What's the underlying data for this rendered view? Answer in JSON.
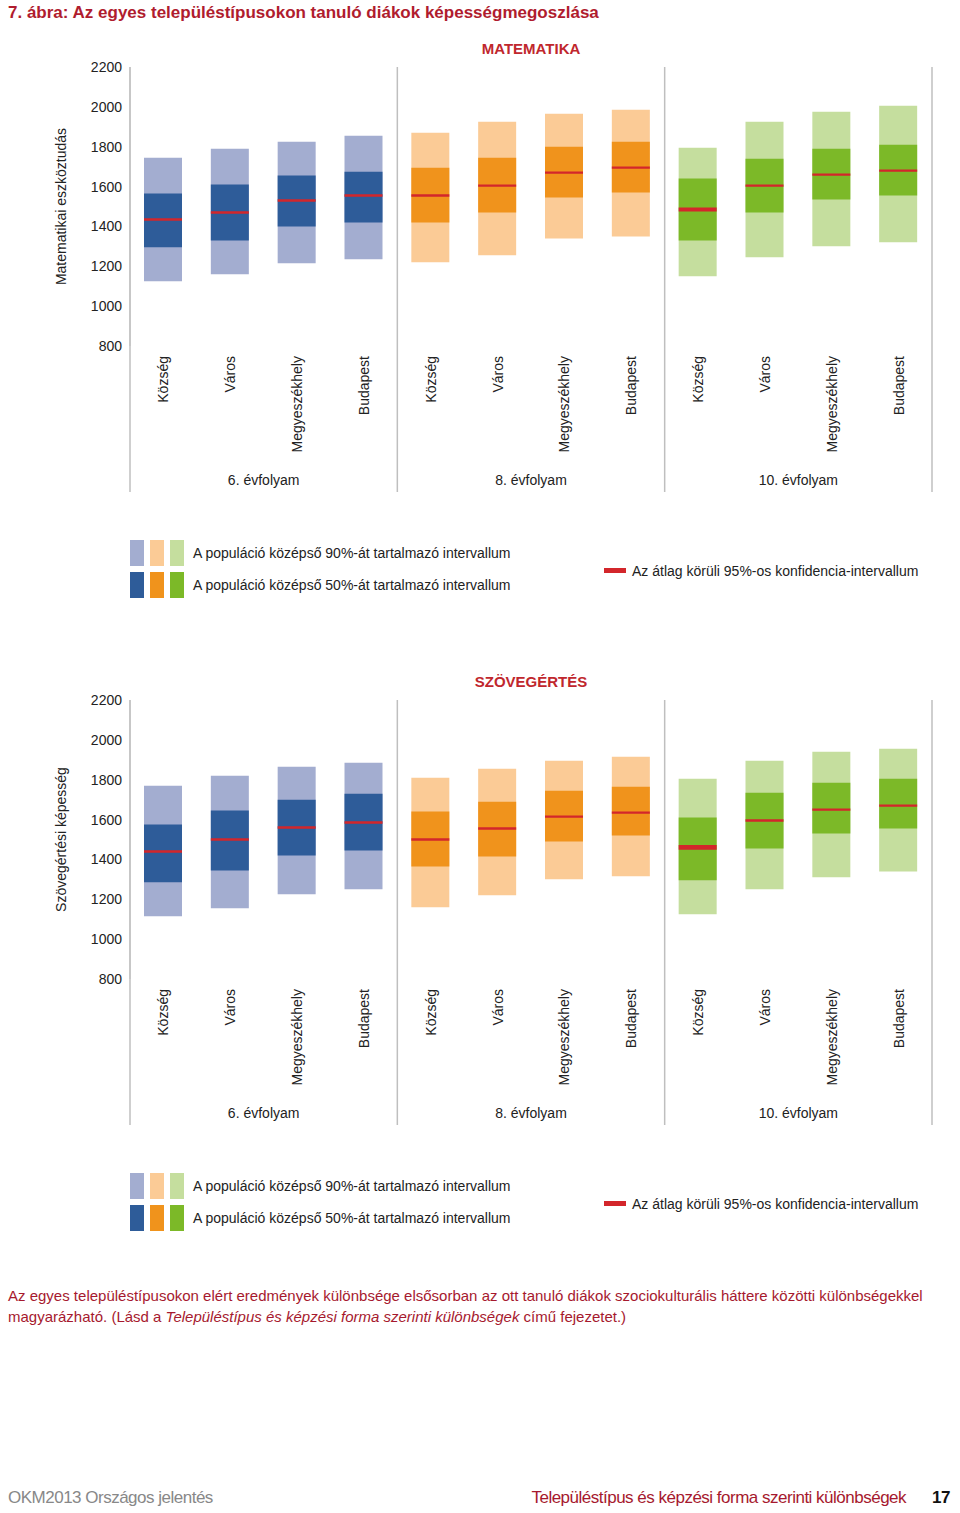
{
  "figure_title": "7. ábra: Az egyes településtípusokon tanuló diákok képességmegoszlása",
  "chart_data": [
    {
      "type": "box",
      "title": "MATEMATIKA",
      "y_label": "Matematikai eszköztudás",
      "ylim": [
        800,
        2200
      ],
      "yticks": [
        800,
        1000,
        1200,
        1400,
        1600,
        1800,
        2000,
        2200
      ],
      "grid": false,
      "color": "#d3262b",
      "legend_labels": [
        "A populáció középső 90%-át tartalmazó intervallum",
        "A populáció középső 50%-át tartalmazó intervallum",
        "Az átlag körüli 95%-os konfidencia-intervallum"
      ],
      "groups": [
        {
          "name": "6. évfolyam",
          "categories": [
            "Község",
            "Város",
            "Megyeszékhely",
            "Budapest"
          ],
          "colors": [
            "#a3add0",
            "#2e5c99"
          ],
          "p5": [
            1125,
            1160,
            1215,
            1235
          ],
          "p25": [
            1295,
            1330,
            1400,
            1420
          ],
          "p75": [
            1565,
            1610,
            1655,
            1675
          ],
          "p95": [
            1745,
            1790,
            1825,
            1855
          ],
          "mean": [
            1435,
            1470,
            1530,
            1555
          ],
          "ci": [
            6,
            6,
            6,
            6
          ]
        },
        {
          "name": "8. évfolyam",
          "categories": [
            "Község",
            "Város",
            "Megyeszékhely",
            "Budapest"
          ],
          "colors": [
            "#fbcb96",
            "#f0931c"
          ],
          "p5": [
            1220,
            1255,
            1340,
            1350
          ],
          "p25": [
            1420,
            1470,
            1545,
            1570
          ],
          "p75": [
            1695,
            1745,
            1800,
            1825
          ],
          "p95": [
            1870,
            1925,
            1965,
            1985
          ],
          "mean": [
            1555,
            1605,
            1670,
            1695
          ],
          "ci": [
            6,
            6,
            6,
            6
          ]
        },
        {
          "name": "10. évfolyam",
          "categories": [
            "Község",
            "Város",
            "Megyeszékhely",
            "Budapest"
          ],
          "colors": [
            "#c5de9e",
            "#7cb928"
          ],
          "p5": [
            1150,
            1245,
            1300,
            1320
          ],
          "p25": [
            1330,
            1470,
            1535,
            1555
          ],
          "p75": [
            1640,
            1740,
            1790,
            1810
          ],
          "p95": [
            1795,
            1925,
            1975,
            2005
          ],
          "mean": [
            1485,
            1605,
            1660,
            1680
          ],
          "ci": [
            10,
            6,
            6,
            6
          ]
        }
      ]
    },
    {
      "type": "box",
      "title": "SZÖVEGÉRTÉS",
      "y_label": "Szövegértési képesség",
      "ylim": [
        800,
        2200
      ],
      "yticks": [
        800,
        1000,
        1200,
        1400,
        1600,
        1800,
        2000,
        2200
      ],
      "grid": false,
      "color": "#d3262b",
      "legend_labels": [
        "A populáció középső 90%-át tartalmazó intervallum",
        "A populáció középső 50%-át tartalmazó intervallum",
        "Az átlag körüli 95%-os konfidencia-intervallum"
      ],
      "groups": [
        {
          "name": "6. évfolyam",
          "categories": [
            "Község",
            "Város",
            "Megyeszékhely",
            "Budapest"
          ],
          "colors": [
            "#a3add0",
            "#2e5c99"
          ],
          "p5": [
            1115,
            1155,
            1225,
            1250
          ],
          "p25": [
            1285,
            1345,
            1420,
            1445
          ],
          "p75": [
            1575,
            1645,
            1700,
            1730
          ],
          "p95": [
            1770,
            1820,
            1865,
            1885
          ],
          "mean": [
            1440,
            1500,
            1560,
            1585
          ],
          "ci": [
            6,
            6,
            6,
            6
          ]
        },
        {
          "name": "8. évfolyam",
          "categories": [
            "Község",
            "Város",
            "Megyeszékhely",
            "Budapest"
          ],
          "colors": [
            "#fbcb96",
            "#f0931c"
          ],
          "p5": [
            1160,
            1220,
            1300,
            1315
          ],
          "p25": [
            1365,
            1415,
            1490,
            1520
          ],
          "p75": [
            1640,
            1690,
            1745,
            1765
          ],
          "p95": [
            1810,
            1855,
            1895,
            1915
          ],
          "mean": [
            1500,
            1555,
            1615,
            1635
          ],
          "ci": [
            6,
            6,
            6,
            6
          ]
        },
        {
          "name": "10. évfolyam",
          "categories": [
            "Község",
            "Város",
            "Megyeszékhely",
            "Budapest"
          ],
          "colors": [
            "#c5de9e",
            "#7cb928"
          ],
          "p5": [
            1125,
            1250,
            1310,
            1340
          ],
          "p25": [
            1295,
            1455,
            1530,
            1555
          ],
          "p75": [
            1610,
            1735,
            1785,
            1805
          ],
          "p95": [
            1805,
            1895,
            1940,
            1955
          ],
          "mean": [
            1460,
            1595,
            1650,
            1670
          ],
          "ci": [
            12,
            6,
            6,
            6
          ]
        }
      ]
    }
  ],
  "caption": {
    "before": "Az egyes településtípusokon elért eredmények különbsége elsősorban az ott tanuló diákok szociokulturális háttere közötti különbségekkel magyarázható. (Lásd a ",
    "emphasis": "Településtípus és képzési forma szerinti különbségek",
    "after": " című fejezetet.)"
  },
  "footer": {
    "left": "OKM2013 Országos jelentés",
    "right": "Településtípus és képzési forma szerinti különbségek",
    "page": 17
  }
}
